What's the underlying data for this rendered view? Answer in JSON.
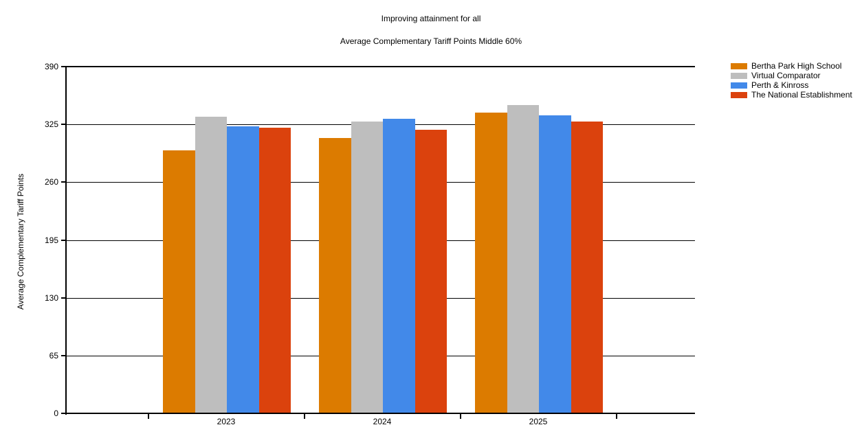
{
  "window": {
    "background": "#FFFFFF"
  },
  "chart_data": {
    "type": "bar",
    "title": "Improving attainment for all",
    "subtitle": "Average Complementary Tariff Points Middle 60%",
    "ylabel": "Average Complementary Tariff Points",
    "xlabel": "",
    "categories": [
      "2023",
      "2024",
      "2025"
    ],
    "series": [
      {
        "name": "Bertha Park High School",
        "color": "#DC7B00",
        "values": [
          296,
          310,
          338
        ]
      },
      {
        "name": "Virtual Comparator",
        "color": "#BEBEBE",
        "values": [
          334,
          328,
          347
        ]
      },
      {
        "name": "Perth & Kinross",
        "color": "#4289E9",
        "values": [
          323,
          331,
          335
        ]
      },
      {
        "name": "The National Establishment",
        "color": "#DB420D",
        "values": [
          321,
          319,
          328
        ]
      }
    ],
    "ylim": [
      0,
      390
    ],
    "yticks": [
      0,
      65,
      130,
      195,
      260,
      325,
      390
    ],
    "grid": true,
    "legend_position": "top-right",
    "axis_color": "#000000",
    "text_color": "#000000"
  }
}
